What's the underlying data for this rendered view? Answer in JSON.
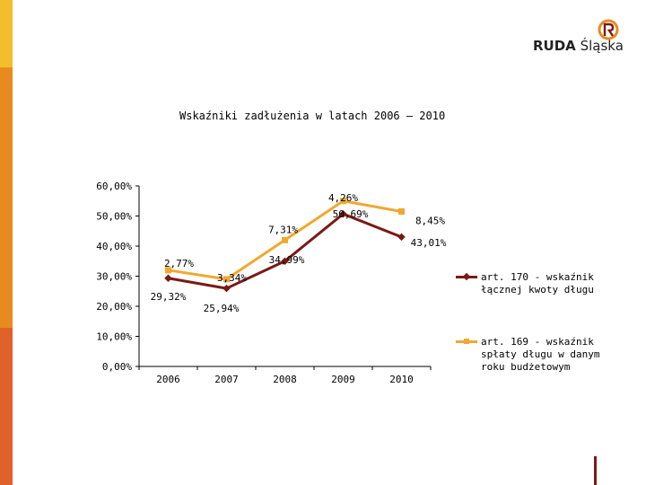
{
  "logo": {
    "brand_bold": "RUDA",
    "brand_light": "Śląska"
  },
  "colors": {
    "orange": "#F0A830",
    "maroon": "#7A1A14",
    "sidebar_top": "#F3BE2C",
    "sidebar_mid": "#E88B1F",
    "sidebar_bottom": "#E0622A"
  },
  "chart_data": {
    "type": "line",
    "title": "Wskaźniki zadłużenia w latach 2006 – 2010",
    "categories": [
      "2006",
      "2007",
      "2008",
      "2009",
      "2010"
    ],
    "ylim": [
      0,
      60
    ],
    "yticks": [
      "0,00%",
      "10,00%",
      "20,00%",
      "30,00%",
      "40,00%",
      "50,00%",
      "60,00%"
    ],
    "grid": false,
    "legend_position": "right",
    "series": [
      {
        "name": "art. 170 - wskaźnik łącznej kwoty długu",
        "color": "#7A1A14",
        "marker": "diamond",
        "values": [
          29.32,
          25.94,
          34.99,
          50.69,
          43.01
        ],
        "labels": [
          "29,32%",
          "25,94%",
          "34,99%",
          "50,69%",
          "43,01%"
        ]
      },
      {
        "name": "art. 169 - wskaźnik spłaty długu w danym roku budżetowym",
        "color": "#F0A830",
        "marker": "square",
        "values": [
          2.77,
          3.34,
          7.31,
          4.26,
          8.45
        ],
        "plot_values": [
          32.0,
          29.0,
          42.0,
          55.0,
          51.5
        ],
        "labels": [
          "2,77%",
          "3,34%",
          "7,31%",
          "4,26%",
          "8,45%"
        ]
      }
    ]
  }
}
